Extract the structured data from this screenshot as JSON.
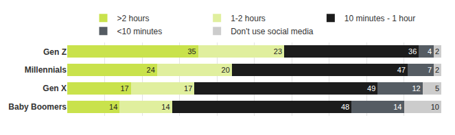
{
  "chart_data": {
    "type": "bar",
    "orientation": "horizontal",
    "stacked": true,
    "data_labels": true,
    "categories": [
      "Gen Z",
      "Millennials",
      "Gen X",
      "Baby Boomers"
    ],
    "series": [
      {
        "name": ">2 hours",
        "color": "#c9e24c",
        "values": [
          35,
          24,
          17,
          14
        ]
      },
      {
        "name": "1-2 hours",
        "color": "#e0ef9e",
        "values": [
          23,
          20,
          17,
          14
        ]
      },
      {
        "name": "10 minutes - 1 hour",
        "color": "#1c1c1c",
        "values": [
          36,
          47,
          49,
          48
        ]
      },
      {
        "name": "<10 minutes",
        "color": "#555c63",
        "values": [
          4,
          7,
          12,
          14
        ]
      },
      {
        "name": "Don't use social media",
        "color": "#cccccc",
        "values": [
          2,
          2,
          5,
          10
        ]
      }
    ],
    "xlim": [
      0,
      100
    ],
    "xticks": [
      0,
      10,
      20,
      30,
      40,
      50,
      60,
      70,
      80,
      90,
      100
    ],
    "grid": true,
    "tick_labels": "y",
    "legend": "top"
  }
}
